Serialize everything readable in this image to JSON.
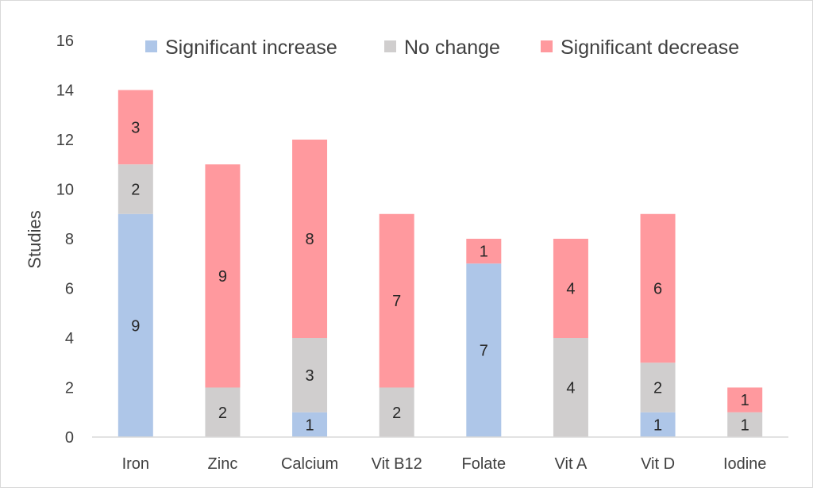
{
  "chart_data": {
    "type": "bar",
    "stacked": true,
    "title": "",
    "xlabel": "",
    "ylabel": "Studies",
    "ylim": [
      0,
      16
    ],
    "yticks": [
      0,
      2,
      4,
      6,
      8,
      10,
      12,
      14,
      16
    ],
    "grid": false,
    "legend_position": "top",
    "categories": [
      "Iron",
      "Zinc",
      "Calcium",
      "Vit B12",
      "Folate",
      "Vit A",
      "Vit D",
      "Iodine"
    ],
    "series": [
      {
        "name": "Significant increase",
        "color": "#aec6e8",
        "values": [
          9,
          0,
          1,
          0,
          7,
          0,
          1,
          0
        ]
      },
      {
        "name": "No change",
        "color": "#d0cece",
        "values": [
          2,
          2,
          3,
          2,
          0,
          4,
          2,
          1
        ]
      },
      {
        "name": "Significant decrease",
        "color": "#ff999e",
        "values": [
          3,
          9,
          8,
          7,
          1,
          4,
          6,
          1
        ]
      }
    ]
  }
}
